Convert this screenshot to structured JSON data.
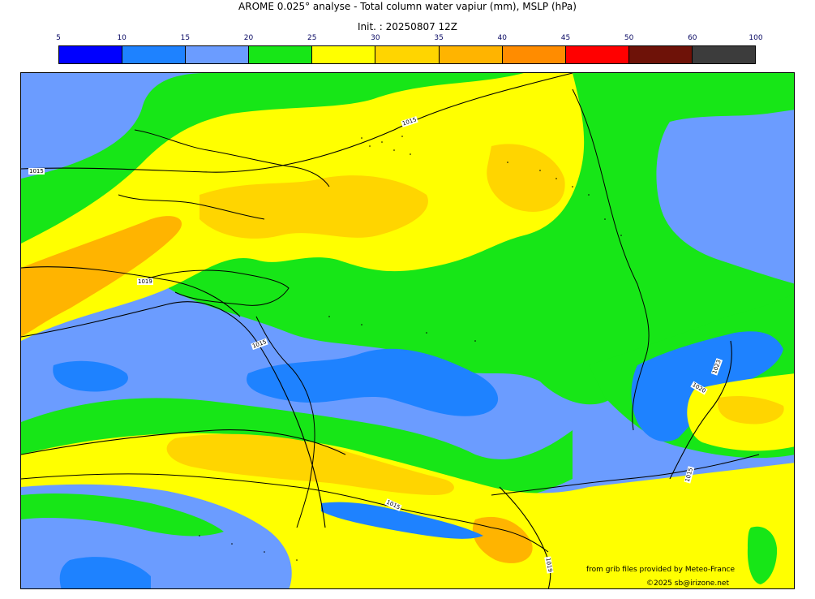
{
  "title": "AROME 0.025° analyse - Total column water vapiur (mm), MSLP (hPa)",
  "init": "Init. : 20250807 12Z",
  "colorbar": {
    "ticks": [
      "5",
      "10",
      "15",
      "20",
      "25",
      "30",
      "35",
      "40",
      "45",
      "50",
      "60",
      "100"
    ],
    "colors": [
      "#0000ff",
      "#1e82ff",
      "#6b9cff",
      "#17e617",
      "#ffff00",
      "#ffd500",
      "#ffb400",
      "#ff8c00",
      "#ff0000",
      "#6e1208",
      "#3c3c3c"
    ],
    "tick_color": "#0a0a64"
  },
  "isobar_labels": [
    "1015",
    "1015",
    "1019",
    "1015",
    "1023",
    "1020",
    "1015",
    "1015",
    "1019"
  ],
  "credits": {
    "source": "from grib files provided by Meteo-France",
    "copyright": "©2025 sb@irizone.net"
  }
}
